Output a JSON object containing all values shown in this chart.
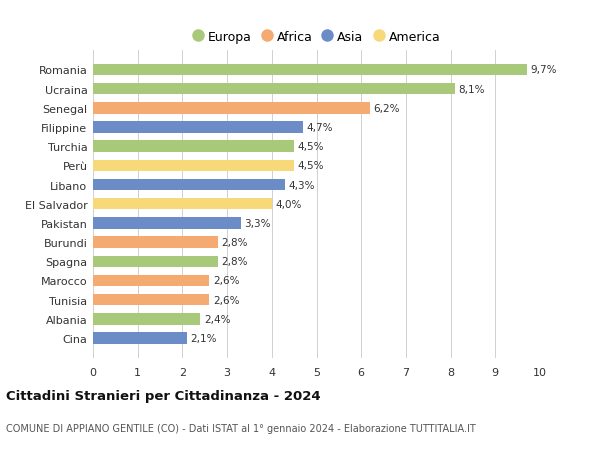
{
  "countries": [
    "Romania",
    "Ucraina",
    "Senegal",
    "Filippine",
    "Turchia",
    "Perù",
    "Libano",
    "El Salvador",
    "Pakistan",
    "Burundi",
    "Spagna",
    "Marocco",
    "Tunisia",
    "Albania",
    "Cina"
  ],
  "values": [
    9.7,
    8.1,
    6.2,
    4.7,
    4.5,
    4.5,
    4.3,
    4.0,
    3.3,
    2.8,
    2.8,
    2.6,
    2.6,
    2.4,
    2.1
  ],
  "labels": [
    "9,7%",
    "8,1%",
    "6,2%",
    "4,7%",
    "4,5%",
    "4,5%",
    "4,3%",
    "4,0%",
    "3,3%",
    "2,8%",
    "2,8%",
    "2,6%",
    "2,6%",
    "2,4%",
    "2,1%"
  ],
  "continents": [
    "Europa",
    "Europa",
    "Africa",
    "Asia",
    "Europa",
    "America",
    "Asia",
    "America",
    "Asia",
    "Africa",
    "Europa",
    "Africa",
    "Africa",
    "Europa",
    "Asia"
  ],
  "colors": {
    "Europa": "#a8c87a",
    "Africa": "#f4aa70",
    "Asia": "#6b8cc7",
    "America": "#f7d97a"
  },
  "legend_order": [
    "Europa",
    "Africa",
    "Asia",
    "America"
  ],
  "xlim": [
    0,
    10
  ],
  "xticks": [
    0,
    1,
    2,
    3,
    4,
    5,
    6,
    7,
    8,
    9,
    10
  ],
  "title": "Cittadini Stranieri per Cittadinanza - 2024",
  "subtitle": "COMUNE DI APPIANO GENTILE (CO) - Dati ISTAT al 1° gennaio 2024 - Elaborazione TUTTITALIA.IT",
  "bg_color": "#ffffff",
  "grid_color": "#d0d0d0",
  "bar_height": 0.6
}
